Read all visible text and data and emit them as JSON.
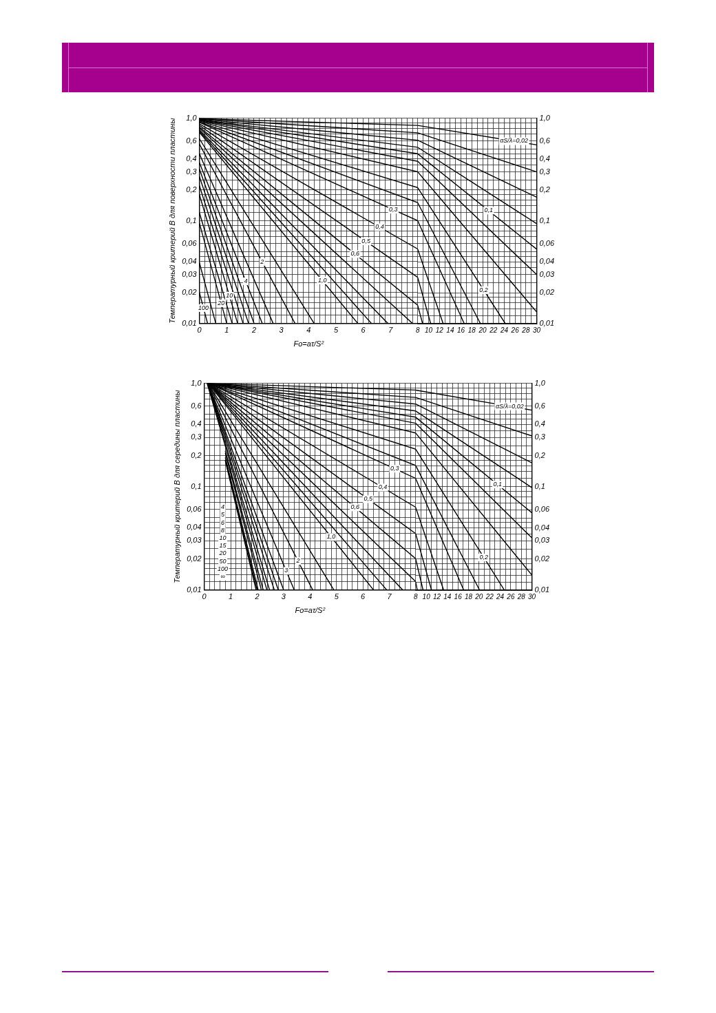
{
  "chart_data": [
    {
      "type": "line",
      "ylabel": "Температурный критерий B для поверхности пластины",
      "xlabel": "Fo=aτ/S²",
      "xlim": [
        0,
        8
      ],
      "ylim": [
        0.01,
        1
      ],
      "log": "y",
      "grid": true,
      "marker": "none",
      "xticks": [
        0,
        {
          "value": 0.2,
          "label": null
        },
        {
          "value": 0.4,
          "label": null
        },
        {
          "value": 0.6,
          "label": null
        },
        {
          "value": 0.8,
          "label": null
        },
        1,
        {
          "value": 1.2,
          "label": null
        },
        {
          "value": 1.4,
          "label": null
        },
        {
          "value": 1.6,
          "label": null
        },
        {
          "value": 1.8,
          "label": null
        },
        2,
        {
          "value": 2.2,
          "label": null
        },
        {
          "value": 2.4,
          "label": null
        },
        {
          "value": 2.6,
          "label": null
        },
        {
          "value": 2.8,
          "label": null
        },
        3,
        {
          "value": 3.2,
          "label": null
        },
        {
          "value": 3.4,
          "label": null
        },
        {
          "value": 3.6,
          "label": null
        },
        {
          "value": 3.8,
          "label": null
        },
        4,
        {
          "value": 4.2,
          "label": null
        },
        {
          "value": 4.4,
          "label": null
        },
        {
          "value": 4.6,
          "label": null
        },
        {
          "value": 4.8,
          "label": null
        },
        5,
        {
          "value": 5.2,
          "label": null
        },
        {
          "value": 5.4,
          "label": null
        },
        {
          "value": 5.6,
          "label": null
        },
        {
          "value": 5.8,
          "label": null
        },
        6,
        {
          "value": 6.2,
          "label": null
        },
        {
          "value": 6.4,
          "label": null
        },
        {
          "value": 6.6,
          "label": null
        },
        {
          "value": 6.8,
          "label": null
        },
        7,
        {
          "value": 7.2,
          "label": null
        },
        {
          "value": 7.4,
          "label": null
        },
        {
          "value": 7.6,
          "label": null
        },
        {
          "value": 7.8,
          "label": null
        }
      ],
      "yticks": [
        {
          "value": 0.01,
          "label": "0,01"
        },
        {
          "value": 0.012,
          "label": null
        },
        {
          "value": 0.014,
          "label": null
        },
        {
          "value": 0.016,
          "label": null
        },
        {
          "value": 0.018,
          "label": null
        },
        {
          "value": 0.02,
          "label": "0,02"
        },
        {
          "value": 0.025,
          "label": null
        },
        {
          "value": 0.03,
          "label": "0,03"
        },
        {
          "value": 0.035,
          "label": null
        },
        {
          "value": 0.04,
          "label": "0,04"
        },
        {
          "value": 0.045,
          "label": null
        },
        {
          "value": 0.05,
          "label": null
        },
        {
          "value": 0.06,
          "label": "0,06"
        },
        {
          "value": 0.07,
          "label": null
        },
        {
          "value": 0.08,
          "label": null
        },
        {
          "value": 0.09,
          "label": null
        },
        {
          "value": 0.1,
          "label": "0,1"
        },
        {
          "value": 0.12,
          "label": null
        },
        {
          "value": 0.14,
          "label": null
        },
        {
          "value": 0.16,
          "label": null
        },
        {
          "value": 0.18,
          "label": null
        },
        {
          "value": 0.2,
          "label": "0,2"
        },
        {
          "value": 0.25,
          "label": null
        },
        {
          "value": 0.3,
          "label": "0,3"
        },
        {
          "value": 0.35,
          "label": null
        },
        {
          "value": 0.4,
          "label": "0,4"
        },
        {
          "value": 0.45,
          "label": null
        },
        {
          "value": 0.5,
          "label": null
        },
        {
          "value": 0.6,
          "label": "0,6"
        },
        {
          "value": 0.7,
          "label": null
        },
        {
          "value": 0.8,
          "label": null
        },
        {
          "value": 0.9,
          "label": null
        },
        {
          "value": 1,
          "label": "1,0"
        }
      ],
      "series": [
        {
          "color": "#000000",
          "x": [
            0,
            8
          ],
          "values": [
            0.99,
            0.85
          ]
        },
        {
          "color": "#000000",
          "x": [
            0,
            8
          ],
          "values": [
            0.99,
            0.72
          ]
        },
        {
          "color": "#000000",
          "x": [
            0,
            8
          ],
          "values": [
            0.98,
            0.61
          ]
        },
        {
          "color": "#000000",
          "x": [
            0,
            8
          ],
          "values": [
            0.97,
            0.52
          ]
        },
        {
          "color": "#000000",
          "x": [
            0,
            8
          ],
          "values": [
            0.97,
            0.45
          ]
        },
        {
          "color": "#000000",
          "x": [
            0,
            8
          ],
          "values": [
            0.96,
            0.38
          ]
        },
        {
          "color": "#000000",
          "x": [
            0,
            8
          ],
          "values": [
            0.95,
            0.3
          ]
        },
        {
          "color": "#000000",
          "x": [
            0,
            8
          ],
          "values": [
            0.94,
            0.21
          ]
        },
        {
          "color": "#000000",
          "x": [
            0,
            8
          ],
          "values": [
            0.92,
            0.15
          ]
        },
        {
          "color": "#000000",
          "x": [
            0,
            8
          ],
          "values": [
            0.91,
            0.1
          ]
        },
        {
          "color": "#000000",
          "x": [
            0,
            8
          ],
          "values": [
            0.88,
            0.053
          ]
        },
        {
          "color": "#000000",
          "x": [
            0,
            8
          ],
          "values": [
            0.85,
            0.028
          ]
        },
        {
          "color": "#000000",
          "x": [
            0,
            8
          ],
          "values": [
            0.82,
            0.015
          ]
        },
        {
          "color": "#000000",
          "x": [
            0,
            7.8
          ],
          "values": [
            0.8,
            0.01
          ]
        },
        {
          "color": "#000000",
          "x": [
            0,
            6.9
          ],
          "values": [
            0.77,
            0.01
          ]
        },
        {
          "color": "#000000",
          "x": [
            0,
            6.3
          ],
          "values": [
            0.75,
            0.01
          ]
        },
        {
          "color": "#000000",
          "x": [
            0,
            5.8
          ],
          "values": [
            0.73,
            0.01
          ]
        },
        {
          "color": "#000000",
          "x": [
            0,
            4.2
          ],
          "values": [
            0.63,
            0.01
          ]
        },
        {
          "color": "#000000",
          "x": [
            0,
            3.5
          ],
          "values": [
            0.56,
            0.01
          ]
        },
        {
          "color": "#000000",
          "x": [
            0,
            2.7
          ],
          "values": [
            0.45,
            0.01
          ]
        },
        {
          "color": "#000000",
          "x": [
            0,
            2.3
          ],
          "values": [
            0.37,
            0.01
          ]
        },
        {
          "color": "#000000",
          "x": [
            0,
            2.0
          ],
          "values": [
            0.32,
            0.01
          ]
        },
        {
          "color": "#000000",
          "x": [
            0,
            1.8
          ],
          "values": [
            0.27,
            0.01
          ]
        },
        {
          "color": "#000000",
          "x": [
            0,
            1.6
          ],
          "values": [
            0.22,
            0.01
          ]
        },
        {
          "color": "#000000",
          "x": [
            0,
            1.4
          ],
          "values": [
            0.18,
            0.01
          ]
        },
        {
          "color": "#000000",
          "x": [
            0,
            1.2
          ],
          "values": [
            0.12,
            0.01
          ]
        },
        {
          "color": "#000000",
          "x": [
            0,
            1.0
          ],
          "values": [
            0.095,
            0.01
          ]
        },
        {
          "color": "#000000",
          "x": [
            0,
            0.6
          ],
          "values": [
            0.039,
            0.01
          ]
        },
        {
          "color": "#000000",
          "x": [
            0,
            0.3
          ],
          "values": [
            0.02,
            0.01
          ]
        }
      ],
      "annotations": [
        {
          "text": "0,3",
          "x": 7.1,
          "y": 0.128
        },
        {
          "text": "0,4",
          "x": 6.6,
          "y": 0.0866
        },
        {
          "text": "0,5",
          "x": 6.1,
          "y": 0.063
        },
        {
          "text": "0,6",
          "x": 5.7,
          "y": 0.0474
        },
        {
          "text": "1,0",
          "x": 4.5,
          "y": 0.0262
        },
        {
          "text": "100",
          "x": 0.15,
          "y": 0.0141
        },
        {
          "text": "20",
          "x": 0.8,
          "y": 0.0157
        },
        {
          "text": "10",
          "x": 1.1,
          "y": 0.0186
        },
        {
          "text": "4",
          "x": 1.7,
          "y": 0.0257
        },
        {
          "text": "2",
          "x": 2.3,
          "y": 0.0397
        }
      ]
    },
    {
      "type": "line",
      "xlim": [
        8,
        30
      ],
      "ylim": [
        0.01,
        1
      ],
      "log": "y",
      "grid": true,
      "marker": "none",
      "xticks": [
        8,
        {
          "value": 9,
          "label": null
        },
        10,
        {
          "value": 11,
          "label": null
        },
        12,
        {
          "value": 13,
          "label": null
        },
        14,
        {
          "value": 15,
          "label": null
        },
        16,
        {
          "value": 17,
          "label": null
        },
        18,
        {
          "value": 19,
          "label": null
        },
        20,
        {
          "value": 21,
          "label": null
        },
        22,
        {
          "value": 23,
          "label": null
        },
        24,
        {
          "value": 25,
          "label": null
        },
        26,
        {
          "value": 27,
          "label": null
        },
        28,
        {
          "value": 29,
          "label": null
        },
        30
      ],
      "yticks": [
        {
          "value": 0.01,
          "label": "0,01"
        },
        {
          "value": 0.012,
          "label": null
        },
        {
          "value": 0.014,
          "label": null
        },
        {
          "value": 0.016,
          "label": null
        },
        {
          "value": 0.018,
          "label": null
        },
        {
          "value": 0.02,
          "label": "0,02"
        },
        {
          "value": 0.025,
          "label": null
        },
        {
          "value": 0.03,
          "label": "0,03"
        },
        {
          "value": 0.035,
          "label": null
        },
        {
          "value": 0.04,
          "label": "0,04"
        },
        {
          "value": 0.045,
          "label": null
        },
        {
          "value": 0.05,
          "label": null
        },
        {
          "value": 0.06,
          "label": "0,06"
        },
        {
          "value": 0.07,
          "label": null
        },
        {
          "value": 0.08,
          "label": null
        },
        {
          "value": 0.09,
          "label": null
        },
        {
          "value": 0.1,
          "label": "0,1"
        },
        {
          "value": 0.12,
          "label": null
        },
        {
          "value": 0.14,
          "label": null
        },
        {
          "value": 0.16,
          "label": null
        },
        {
          "value": 0.18,
          "label": null
        },
        {
          "value": 0.2,
          "label": "0,2"
        },
        {
          "value": 0.25,
          "label": null
        },
        {
          "value": 0.3,
          "label": "0,3"
        },
        {
          "value": 0.35,
          "label": null
        },
        {
          "value": 0.4,
          "label": "0,4"
        },
        {
          "value": 0.45,
          "label": null
        },
        {
          "value": 0.5,
          "label": null
        },
        {
          "value": 0.6,
          "label": "0,6"
        },
        {
          "value": 0.7,
          "label": null
        },
        {
          "value": 0.8,
          "label": null
        },
        {
          "value": 0.9,
          "label": null
        },
        {
          "value": 1,
          "label": "1,0"
        }
      ],
      "series": [
        {
          "color": "#000000",
          "x": [
            8,
            30
          ],
          "values": [
            0.85,
            0.55
          ]
        },
        {
          "color": "#000000",
          "x": [
            8,
            30
          ],
          "values": [
            0.72,
            0.3
          ]
        },
        {
          "color": "#000000",
          "x": [
            8,
            30
          ],
          "values": [
            0.61,
            0.17
          ]
        },
        {
          "color": "#000000",
          "x": [
            8,
            30
          ],
          "values": [
            0.52,
            0.094
          ]
        },
        {
          "color": "#000000",
          "x": [
            8,
            30
          ],
          "values": [
            0.45,
            0.053
          ]
        },
        {
          "color": "#000000",
          "x": [
            8,
            30
          ],
          "values": [
            0.38,
            0.03
          ]
        },
        {
          "color": "#000000",
          "x": [
            8,
            30
          ],
          "values": [
            0.3,
            0.013
          ]
        },
        {
          "color": "#000000",
          "x": [
            8,
            24.2
          ],
          "values": [
            0.21,
            0.01
          ]
        },
        {
          "color": "#000000",
          "x": [
            8,
            19.6
          ],
          "values": [
            0.15,
            0.01
          ]
        },
        {
          "color": "#000000",
          "x": [
            8,
            16.6
          ],
          "values": [
            0.1,
            0.01
          ]
        },
        {
          "color": "#000000",
          "x": [
            8,
            12.7
          ],
          "values": [
            0.053,
            0.01
          ]
        },
        {
          "color": "#000000",
          "x": [
            8,
            10.4
          ],
          "values": [
            0.028,
            0.01
          ]
        },
        {
          "color": "#000000",
          "x": [
            8,
            8.9
          ],
          "values": [
            0.015,
            0.01
          ]
        }
      ],
      "annotations": [
        {
          "text": "αS/λ=0,02",
          "x": 25.8,
          "y": 0.598
        },
        {
          "text": "0,1",
          "x": 21.1,
          "y": 0.126
        },
        {
          "text": "0,2",
          "x": 20.2,
          "y": 0.0212
        }
      ]
    },
    {
      "type": "line",
      "ylabel": "Температурный критерий B для середины пластины",
      "xlabel": "Fo=aτ/S²",
      "xlim": [
        0,
        8
      ],
      "ylim": [
        0.01,
        1
      ],
      "log": "y",
      "grid": true,
      "marker": "none",
      "xticks": [
        0,
        {
          "value": 0.2,
          "label": null
        },
        {
          "value": 0.4,
          "label": null
        },
        {
          "value": 0.6,
          "label": null
        },
        {
          "value": 0.8,
          "label": null
        },
        1,
        {
          "value": 1.2,
          "label": null
        },
        {
          "value": 1.4,
          "label": null
        },
        {
          "value": 1.6,
          "label": null
        },
        {
          "value": 1.8,
          "label": null
        },
        2,
        {
          "value": 2.2,
          "label": null
        },
        {
          "value": 2.4,
          "label": null
        },
        {
          "value": 2.6,
          "label": null
        },
        {
          "value": 2.8,
          "label": null
        },
        3,
        {
          "value": 3.2,
          "label": null
        },
        {
          "value": 3.4,
          "label": null
        },
        {
          "value": 3.6,
          "label": null
        },
        {
          "value": 3.8,
          "label": null
        },
        4,
        {
          "value": 4.2,
          "label": null
        },
        {
          "value": 4.4,
          "label": null
        },
        {
          "value": 4.6,
          "label": null
        },
        {
          "value": 4.8,
          "label": null
        },
        5,
        {
          "value": 5.2,
          "label": null
        },
        {
          "value": 5.4,
          "label": null
        },
        {
          "value": 5.6,
          "label": null
        },
        {
          "value": 5.8,
          "label": null
        },
        6,
        {
          "value": 6.2,
          "label": null
        },
        {
          "value": 6.4,
          "label": null
        },
        {
          "value": 6.6,
          "label": null
        },
        {
          "value": 6.8,
          "label": null
        },
        7,
        {
          "value": 7.2,
          "label": null
        },
        {
          "value": 7.4,
          "label": null
        },
        {
          "value": 7.6,
          "label": null
        },
        {
          "value": 7.8,
          "label": null
        }
      ],
      "yticks": [
        {
          "value": 0.01,
          "label": "0,01"
        },
        {
          "value": 0.012,
          "label": null
        },
        {
          "value": 0.014,
          "label": null
        },
        {
          "value": 0.016,
          "label": null
        },
        {
          "value": 0.018,
          "label": null
        },
        {
          "value": 0.02,
          "label": "0,02"
        },
        {
          "value": 0.025,
          "label": null
        },
        {
          "value": 0.03,
          "label": "0,03"
        },
        {
          "value": 0.035,
          "label": null
        },
        {
          "value": 0.04,
          "label": "0,04"
        },
        {
          "value": 0.045,
          "label": null
        },
        {
          "value": 0.05,
          "label": null
        },
        {
          "value": 0.06,
          "label": "0,06"
        },
        {
          "value": 0.07,
          "label": null
        },
        {
          "value": 0.08,
          "label": null
        },
        {
          "value": 0.09,
          "label": null
        },
        {
          "value": 0.1,
          "label": "0,1"
        },
        {
          "value": 0.12,
          "label": null
        },
        {
          "value": 0.14,
          "label": null
        },
        {
          "value": 0.16,
          "label": null
        },
        {
          "value": 0.18,
          "label": null
        },
        {
          "value": 0.2,
          "label": "0,2"
        },
        {
          "value": 0.25,
          "label": null
        },
        {
          "value": 0.3,
          "label": "0,3"
        },
        {
          "value": 0.35,
          "label": null
        },
        {
          "value": 0.4,
          "label": "0,4"
        },
        {
          "value": 0.45,
          "label": null
        },
        {
          "value": 0.5,
          "label": null
        },
        {
          "value": 0.6,
          "label": "0,6"
        },
        {
          "value": 0.7,
          "label": null
        },
        {
          "value": 0.8,
          "label": null
        },
        {
          "value": 0.9,
          "label": null
        },
        {
          "value": 1,
          "label": "1,0"
        }
      ],
      "series": [
        {
          "color": "#000000",
          "x": [
            0.17,
            8
          ],
          "values": [
            1,
            0.86
          ]
        },
        {
          "color": "#000000",
          "x": [
            0.17,
            8
          ],
          "values": [
            1,
            0.73
          ]
        },
        {
          "color": "#000000",
          "x": [
            0.17,
            8
          ],
          "values": [
            1,
            0.63
          ]
        },
        {
          "color": "#000000",
          "x": [
            0.17,
            8
          ],
          "values": [
            1,
            0.54
          ]
        },
        {
          "color": "#000000",
          "x": [
            0.17,
            8
          ],
          "values": [
            1,
            0.47
          ]
        },
        {
          "color": "#000000",
          "x": [
            0.17,
            8
          ],
          "values": [
            1,
            0.41
          ]
        },
        {
          "color": "#000000",
          "x": [
            0.16,
            8
          ],
          "values": [
            1,
            0.33
          ]
        },
        {
          "color": "#000000",
          "x": [
            0.16,
            8
          ],
          "values": [
            1,
            0.23
          ]
        },
        {
          "color": "#000000",
          "x": [
            0.16,
            8
          ],
          "values": [
            1,
            0.16
          ]
        },
        {
          "color": "#000000",
          "x": [
            0.16,
            8
          ],
          "values": [
            1,
            0.12
          ]
        },
        {
          "color": "#000000",
          "x": [
            0.16,
            8
          ],
          "values": [
            1,
            0.063
          ]
        },
        {
          "color": "#000000",
          "x": [
            0.16,
            8
          ],
          "values": [
            1,
            0.035
          ]
        },
        {
          "color": "#000000",
          "x": [
            0.16,
            8
          ],
          "values": [
            1,
            0.02
          ]
        },
        {
          "color": "#000000",
          "x": [
            0.16,
            8
          ],
          "values": [
            1,
            0.012
          ]
        },
        {
          "color": "#000000",
          "x": [
            0.16,
            7.5
          ],
          "values": [
            1,
            0.01
          ]
        },
        {
          "color": "#000000",
          "x": [
            0.15,
            6.9
          ],
          "values": [
            1,
            0.01
          ]
        },
        {
          "color": "#000000",
          "x": [
            0.15,
            6.4
          ],
          "values": [
            1,
            0.01
          ]
        },
        {
          "color": "#000000",
          "x": [
            0.15,
            4.9
          ],
          "values": [
            1,
            0.01
          ]
        },
        {
          "color": "#000000",
          "x": [
            0.14,
            4.1
          ],
          "values": [
            1,
            0.01
          ]
        },
        {
          "color": "#000000",
          "x": [
            0.13,
            3.4
          ],
          "values": [
            1,
            0.01
          ]
        },
        {
          "color": "#000000",
          "x": [
            0.13,
            3.0
          ],
          "values": [
            1,
            0.01
          ]
        },
        {
          "color": "#000000",
          "x": [
            0.13,
            2.8
          ],
          "values": [
            1,
            0.01
          ]
        },
        {
          "color": "#000000",
          "x": [
            0.12,
            2.65
          ],
          "values": [
            1,
            0.01
          ]
        },
        {
          "color": "#000000",
          "x": [
            0.12,
            2.47
          ],
          "values": [
            1,
            0.01
          ]
        },
        {
          "color": "#000000",
          "x": [
            0.11,
            2.37
          ],
          "values": [
            1,
            0.01
          ]
        },
        {
          "color": "#000000",
          "x": [
            0.8,
            2.23
          ],
          "values": [
            0.22,
            0.01
          ]
        },
        {
          "color": "#000000",
          "x": [
            0.8,
            2.16
          ],
          "values": [
            0.21,
            0.01
          ]
        },
        {
          "color": "#000000",
          "x": [
            0.8,
            2.04
          ],
          "values": [
            0.19,
            0.01
          ]
        },
        {
          "color": "#000000",
          "x": [
            0.8,
            2.0
          ],
          "values": [
            0.18,
            0.01
          ]
        },
        {
          "color": "#000000",
          "x": [
            0.8,
            1.96
          ],
          "values": [
            0.177,
            0.01
          ]
        }
      ],
      "annotations": [
        {
          "text": "0,3",
          "x": 7.2,
          "y": 0.149
        },
        {
          "text": "0,4",
          "x": 6.75,
          "y": 0.0979
        },
        {
          "text": "0,5",
          "x": 6.2,
          "y": 0.0756
        },
        {
          "text": "0,6",
          "x": 5.7,
          "y": 0.063
        },
        {
          "text": "1,0",
          "x": 4.8,
          "y": 0.0325
        },
        {
          "text": "2",
          "x": 3.55,
          "y": 0.019
        },
        {
          "text": "3",
          "x": 3.1,
          "y": 0.0153
        },
        "4",
        "5",
        "6",
        "8",
        "10",
        "15",
        "20",
        "50",
        "100",
        "∞"
      ]
    },
    {
      "type": "line",
      "xlim": [
        8,
        30
      ],
      "ylim": [
        0.01,
        1
      ],
      "log": "y",
      "grid": true,
      "marker": "none",
      "xticks": [
        8,
        {
          "value": 9,
          "label": null
        },
        10,
        {
          "value": 11,
          "label": null
        },
        12,
        {
          "value": 13,
          "label": null
        },
        14,
        {
          "value": 15,
          "label": null
        },
        16,
        {
          "value": 17,
          "label": null
        },
        18,
        {
          "value": 19,
          "label": null
        },
        20,
        {
          "value": 21,
          "label": null
        },
        22,
        {
          "value": 23,
          "label": null
        },
        24,
        {
          "value": 25,
          "label": null
        },
        26,
        {
          "value": 27,
          "label": null
        },
        28,
        {
          "value": 29,
          "label": null
        },
        30
      ],
      "yticks": [
        {
          "value": 0.01,
          "label": "0,01"
        },
        {
          "value": 0.012,
          "label": null
        },
        {
          "value": 0.014,
          "label": null
        },
        {
          "value": 0.016,
          "label": null
        },
        {
          "value": 0.018,
          "label": null
        },
        {
          "value": 0.02,
          "label": "0,02"
        },
        {
          "value": 0.025,
          "label": null
        },
        {
          "value": 0.03,
          "label": "0,03"
        },
        {
          "value": 0.035,
          "label": null
        },
        {
          "value": 0.04,
          "label": "0,04"
        },
        {
          "value": 0.045,
          "label": null
        },
        {
          "value": 0.05,
          "label": null
        },
        {
          "value": 0.06,
          "label": "0,06"
        },
        {
          "value": 0.07,
          "label": null
        },
        {
          "value": 0.08,
          "label": null
        },
        {
          "value": 0.09,
          "label": null
        },
        {
          "value": 0.1,
          "label": "0,1"
        },
        {
          "value": 0.12,
          "label": null
        },
        {
          "value": 0.14,
          "label": null
        },
        {
          "value": 0.16,
          "label": null
        },
        {
          "value": 0.18,
          "label": null
        },
        {
          "value": 0.2,
          "label": "0,2"
        },
        {
          "value": 0.25,
          "label": null
        },
        {
          "value": 0.3,
          "label": "0,3"
        },
        {
          "value": 0.35,
          "label": null
        },
        {
          "value": 0.4,
          "label": "0,4"
        },
        {
          "value": 0.45,
          "label": null
        },
        {
          "value": 0.5,
          "label": null
        },
        {
          "value": 0.6,
          "label": "0,6"
        },
        {
          "value": 0.7,
          "label": null
        },
        {
          "value": 0.8,
          "label": null
        },
        {
          "value": 0.9,
          "label": null
        },
        {
          "value": 1,
          "label": "1,0"
        }
      ],
      "series": [
        {
          "color": "#000000",
          "x": [
            8,
            30
          ],
          "values": [
            0.86,
            0.55
          ]
        },
        {
          "color": "#000000",
          "x": [
            8,
            30
          ],
          "values": [
            0.73,
            0.31
          ]
        },
        {
          "color": "#000000",
          "x": [
            8,
            30
          ],
          "values": [
            0.63,
            0.17
          ]
        },
        {
          "color": "#000000",
          "x": [
            8,
            30
          ],
          "values": [
            0.54,
            0.098
          ]
        },
        {
          "color": "#000000",
          "x": [
            8,
            30
          ],
          "values": [
            0.47,
            0.056
          ]
        },
        {
          "color": "#000000",
          "x": [
            8,
            30
          ],
          "values": [
            0.41,
            0.032
          ]
        },
        {
          "color": "#000000",
          "x": [
            8,
            30
          ],
          "values": [
            0.33,
            0.014
          ]
        },
        {
          "color": "#000000",
          "x": [
            8,
            24.8
          ],
          "values": [
            0.23,
            0.01
          ]
        },
        {
          "color": "#000000",
          "x": [
            8,
            20.1
          ],
          "values": [
            0.16,
            0.01
          ]
        },
        {
          "color": "#000000",
          "x": [
            8,
            17.1
          ],
          "values": [
            0.12,
            0.01
          ]
        },
        {
          "color": "#000000",
          "x": [
            8,
            13.3
          ],
          "values": [
            0.063,
            0.01
          ]
        },
        {
          "color": "#000000",
          "x": [
            8,
            11
          ],
          "values": [
            0.035,
            0.01
          ]
        },
        {
          "color": "#000000",
          "x": [
            8,
            9.4
          ],
          "values": [
            0.02,
            0.01
          ]
        },
        {
          "color": "#000000",
          "x": [
            8,
            8.3
          ],
          "values": [
            0.012,
            0.01
          ]
        }
      ],
      "annotations": [
        {
          "text": "αS/λ=0,02",
          "x": 25.8,
          "y": 0.599
        },
        {
          "text": "0,1",
          "x": 23.5,
          "y": 0.105
        },
        {
          "text": "0,2",
          "x": 20.9,
          "y": 0.0207
        }
      ]
    }
  ]
}
